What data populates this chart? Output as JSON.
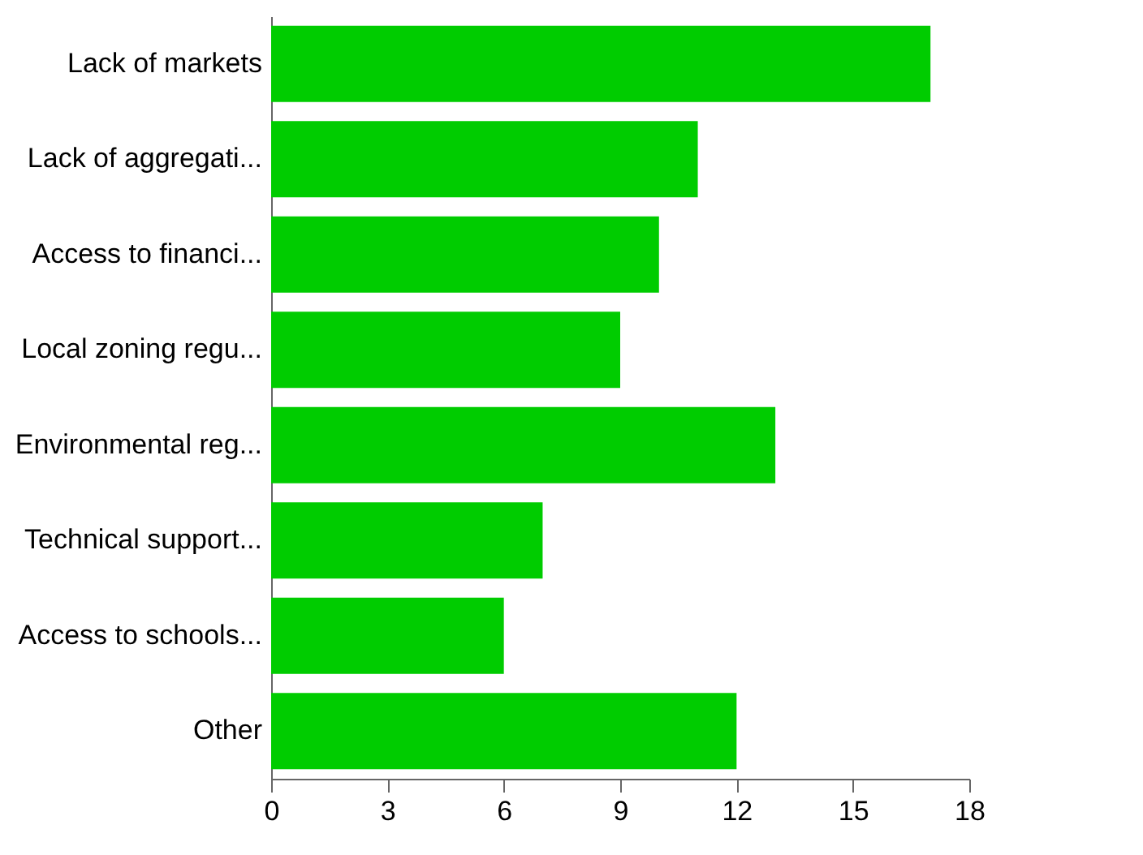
{
  "chart_data": {
    "type": "bar",
    "orientation": "horizontal",
    "categories": [
      "Lack of markets",
      "Lack of aggregati...",
      "Access to financi...",
      "Local zoning regu...",
      "Environmental reg...",
      "Technical support...",
      "Access to schools...",
      "Other"
    ],
    "values": [
      17,
      11,
      10,
      9,
      13,
      7,
      6,
      12
    ],
    "color": "#00cc00",
    "xlim": [
      0,
      18
    ],
    "xticks": [
      0,
      3,
      6,
      9,
      12,
      15,
      18
    ],
    "grid": false
  }
}
